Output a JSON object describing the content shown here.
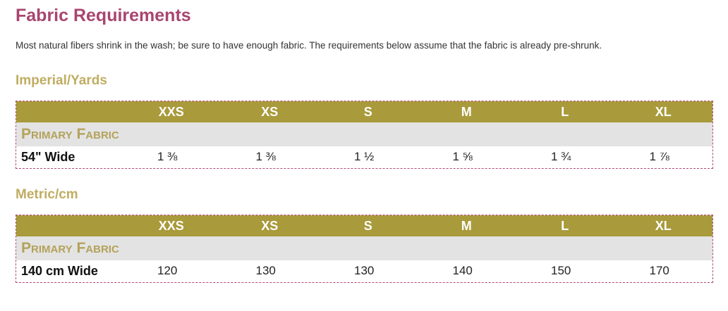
{
  "title": "Fabric Requirements",
  "intro": "Most natural fibers shrink in the wash; be sure to have enough fabric. The requirements below assume that the fabric is already pre-shrunk.",
  "sizes": [
    "XXS",
    "XS",
    "S",
    "M",
    "L",
    "XL"
  ],
  "imperial": {
    "heading": "Imperial/Yards",
    "group": "Primary Fabric",
    "row_label": "54\" Wide",
    "values": [
      "1 ⅜",
      "1 ⅜",
      "1 ½",
      "1 ⅝",
      "1 ¾",
      "1 ⅞"
    ]
  },
  "metric": {
    "heading": "Metric/cm",
    "group": "Primary Fabric",
    "row_label": "140 cm Wide",
    "values": [
      "120",
      "130",
      "130",
      "140",
      "150",
      "170"
    ]
  },
  "colors": {
    "title": "#a8456f",
    "section_heading": "#c0ad62",
    "table_header_bg": "#a99a3b",
    "group_row_bg": "#e3e3e3",
    "border": "#b04a7a"
  }
}
